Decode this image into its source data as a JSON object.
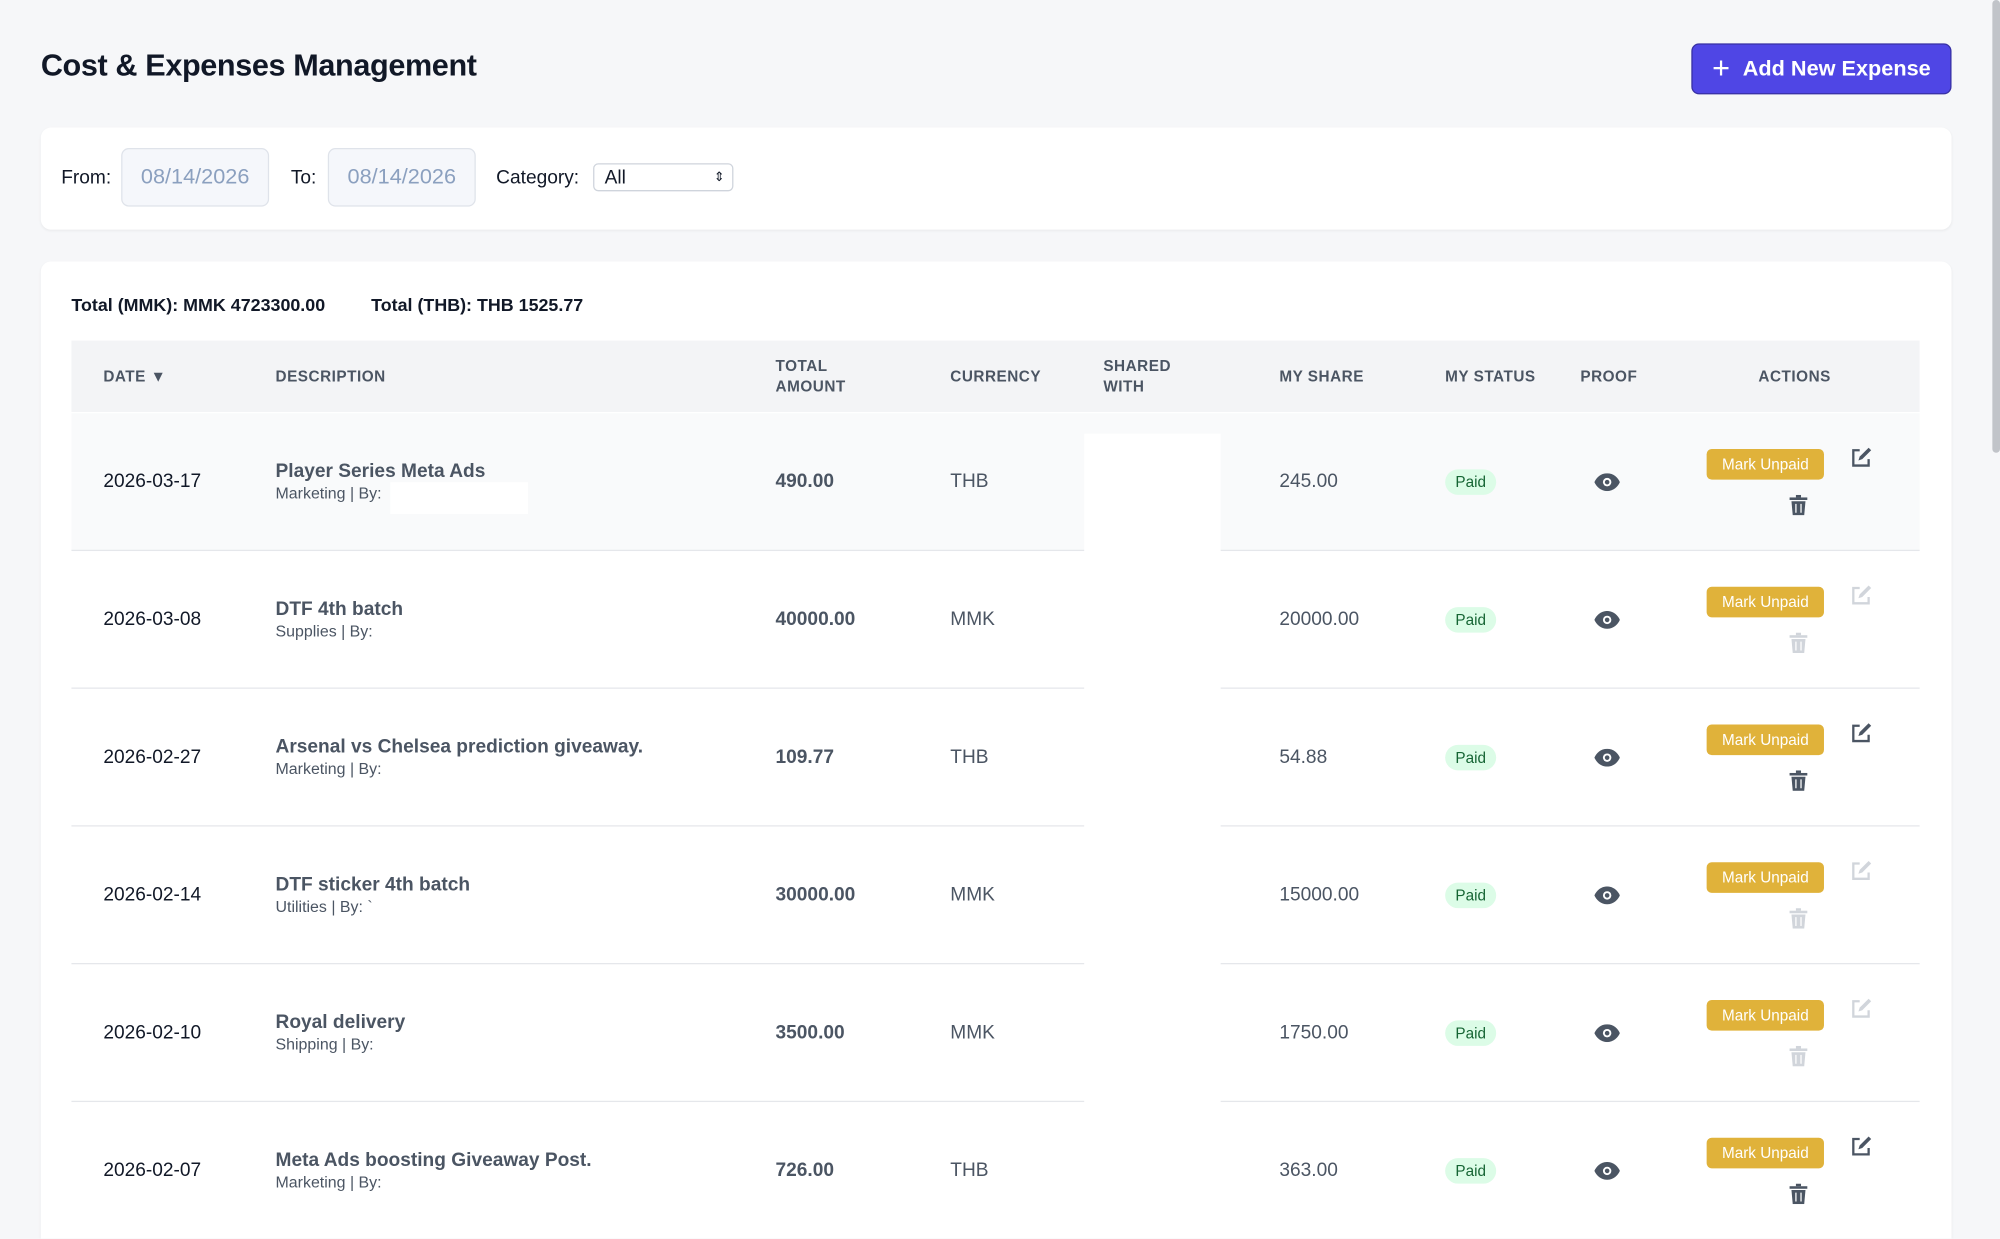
{
  "header": {
    "title": "Cost & Expenses Management",
    "button": "Add New Expense"
  },
  "filters": {
    "from_label": "From:",
    "from_date": "08/14/2026",
    "to_label": "To:",
    "to_date": "08/14/2026",
    "category_label": "Category:",
    "category_value": "All"
  },
  "totals": [
    {
      "label": "Total (MMK):",
      "value": "MMK 4723300.00"
    },
    {
      "label": "Total (THB):",
      "value": "THB 1525.77"
    }
  ],
  "table": {
    "columns": [
      "DATE ▼",
      "DESCRIPTION",
      "TOTAL AMOUNT",
      "CURRENCY",
      "SHARED WITH",
      "MY SHARE",
      "MY STATUS",
      "PROOF",
      "ACTIONS"
    ],
    "rows": [
      {
        "date": "2026-03-17",
        "description": "Player Series Meta Ads",
        "meta": "Marketing | By:",
        "total": "490.00",
        "currency": "THB",
        "my_share": "245.00",
        "status": "Paid",
        "action": "Mark Unpaid",
        "editable": true
      },
      {
        "date": "2026-03-08",
        "description": "DTF 4th batch",
        "meta": "Supplies | By:",
        "total": "40000.00",
        "currency": "MMK",
        "my_share": "20000.00",
        "status": "Paid",
        "action": "Mark Unpaid",
        "editable": false
      },
      {
        "date": "2026-02-27",
        "description": "Arsenal vs Chelsea prediction giveaway.",
        "meta": "Marketing | By:",
        "total": "109.77",
        "currency": "THB",
        "my_share": "54.88",
        "status": "Paid",
        "action": "Mark Unpaid",
        "editable": true
      },
      {
        "date": "2026-02-14",
        "description": "DTF sticker 4th batch",
        "meta": "Utilities | By: `",
        "total": "30000.00",
        "currency": "MMK",
        "my_share": "15000.00",
        "status": "Paid",
        "action": "Mark Unpaid",
        "editable": false
      },
      {
        "date": "2026-02-10",
        "description": "Royal delivery",
        "meta": "Shipping | By:",
        "total": "3500.00",
        "currency": "MMK",
        "my_share": "1750.00",
        "status": "Paid",
        "action": "Mark Unpaid",
        "editable": false
      },
      {
        "date": "2026-02-07",
        "description": "Meta Ads boosting Giveaway Post.",
        "meta": "Marketing | By:",
        "total": "726.00",
        "currency": "THB",
        "my_share": "363.00",
        "status": "Paid",
        "action": "Mark Unpaid",
        "editable": true
      }
    ]
  }
}
